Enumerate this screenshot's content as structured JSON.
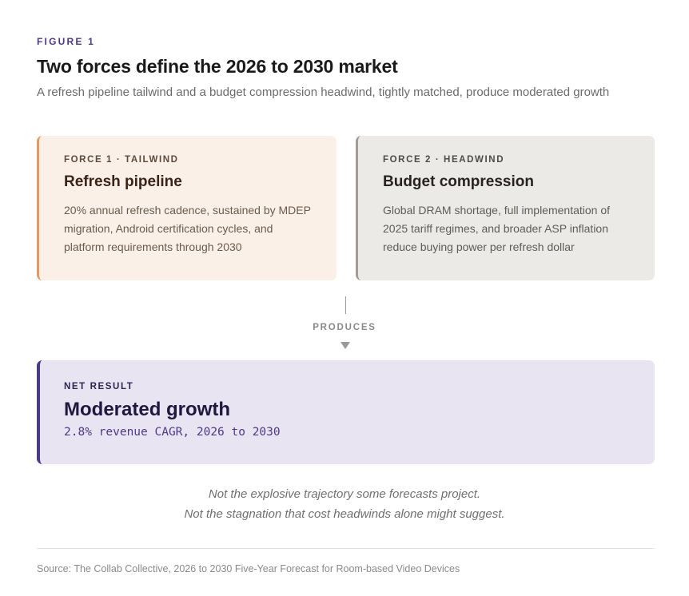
{
  "header": {
    "eyebrow": "FIGURE 1",
    "title": "Two forces define the 2026 to 2030 market",
    "subtitle": "A refresh pipeline tailwind and a budget compression headwind, tightly matched, produce moderated growth"
  },
  "forces": [
    {
      "eyebrow": "FORCE 1 · TAILWIND",
      "title": "Refresh pipeline",
      "body": "20% annual refresh cadence, sustained by MDEP migration, Android certification cycles, and platform requirements through 2030",
      "accent_color": "#e39a62",
      "background_color": "#faf0e7"
    },
    {
      "eyebrow": "FORCE 2 · HEADWIND",
      "title": "Budget compression",
      "body": "Global DRAM shortage, full implementation of 2025 tariff regimes, and broader ASP inflation reduce buying power per refresh dollar",
      "accent_color": "#a39b94",
      "background_color": "#ebeae6"
    }
  ],
  "connector": {
    "label": "PRODUCES"
  },
  "result": {
    "eyebrow": "NET RESULT",
    "title": "Moderated growth",
    "detail": "2.8% revenue CAGR, 2026 to 2030",
    "accent_color": "#4b3a86",
    "background_color": "#e8e4f1"
  },
  "footnote": {
    "line1": "Not the explosive trajectory some forecasts project.",
    "line2": "Not the stagnation that cost headwinds alone might suggest."
  },
  "source": "Source: The Collab Collective, 2026 to 2030 Five-Year Forecast for Room-based Video Devices"
}
